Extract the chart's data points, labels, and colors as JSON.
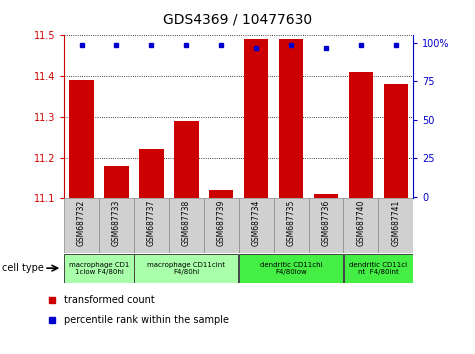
{
  "title": "GDS4369 / 10477630",
  "samples": [
    "GSM687732",
    "GSM687733",
    "GSM687737",
    "GSM687738",
    "GSM687739",
    "GSM687734",
    "GSM687735",
    "GSM687736",
    "GSM687740",
    "GSM687741"
  ],
  "transformed_count": [
    11.39,
    11.18,
    11.22,
    11.29,
    11.12,
    11.49,
    11.49,
    11.11,
    11.41,
    11.38
  ],
  "percentile_rank": [
    99,
    99,
    99,
    99,
    99,
    97,
    99,
    97,
    99,
    99
  ],
  "ylim": [
    11.1,
    11.5
  ],
  "yticks_left": [
    11.1,
    11.2,
    11.3,
    11.4,
    11.5
  ],
  "yticks_right": [
    0,
    25,
    50,
    75,
    100
  ],
  "bar_color": "#cc0000",
  "dot_color": "#0000cc",
  "cell_groups": [
    {
      "label": "macrophage CD1\n1clow F4/80hi",
      "start": 0,
      "end": 2,
      "color": "#aaffaa"
    },
    {
      "label": "macrophage CD11cint\nF4/80hi",
      "start": 2,
      "end": 5,
      "color": "#aaffaa"
    },
    {
      "label": "dendritic CD11chi\nF4/80low",
      "start": 5,
      "end": 8,
      "color": "#44ee44"
    },
    {
      "label": "dendritic CD11ci\nnt  F4/80int",
      "start": 8,
      "end": 10,
      "color": "#44ee44"
    }
  ],
  "cell_type_label": "cell type",
  "legend_red": "transformed count",
  "legend_blue": "percentile rank within the sample"
}
